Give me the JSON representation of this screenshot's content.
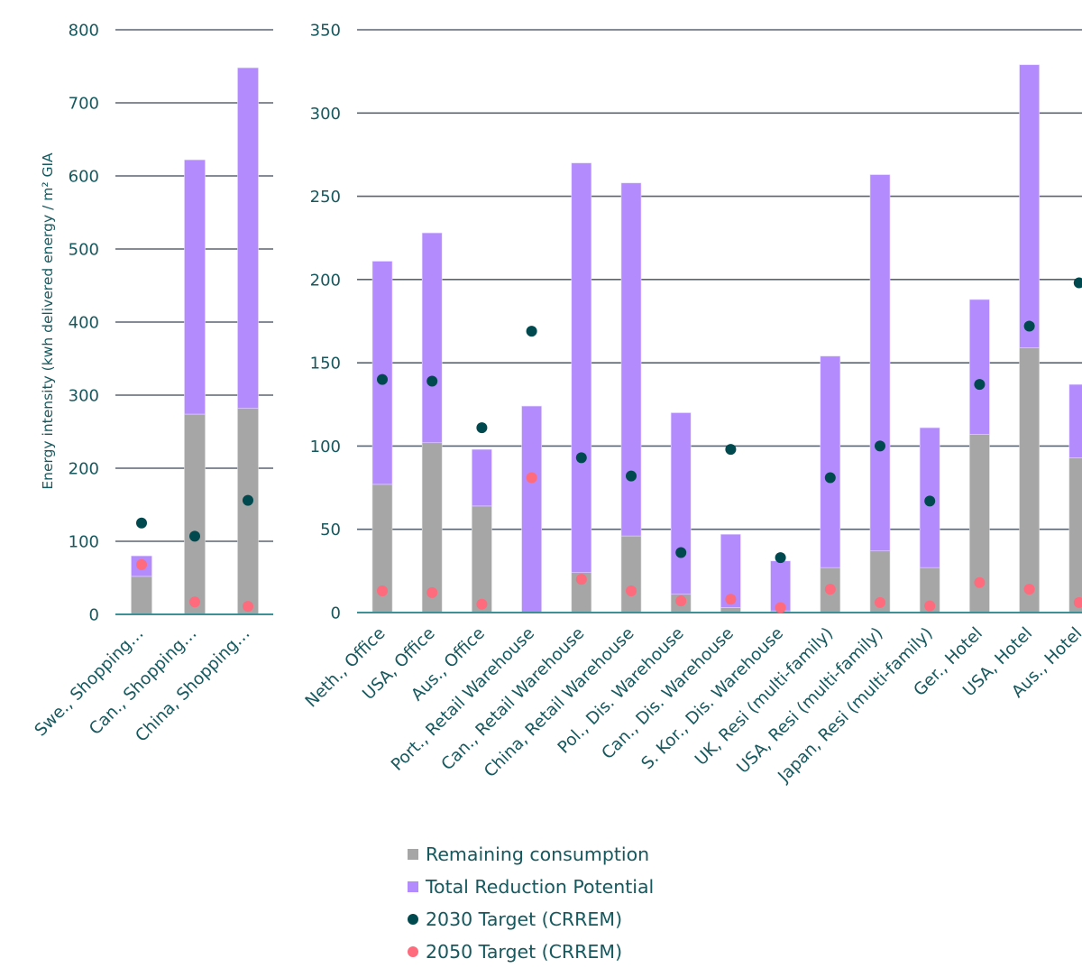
{
  "colors": {
    "remaining": "#a6a6a6",
    "reduction": "#b38bfd",
    "target2030": "#00494f",
    "target2050": "#fd6b7d",
    "text": "#15585e",
    "grid": "#5b6571",
    "baseline": "#3d9096"
  },
  "chart_data": [
    {
      "type": "bar",
      "stacked": true,
      "ylabel": "Energy intensity (kwh delivered energy / m² GIA",
      "ylim": [
        0,
        800
      ],
      "yticks": [
        0,
        100,
        200,
        300,
        400,
        500,
        600,
        700,
        800
      ],
      "ytick_labels": [
        "0",
        "100",
        "200",
        "300",
        "400",
        "500",
        "600",
        "700",
        "800"
      ],
      "grid": true,
      "categories": [
        "Swe., Shopping…",
        "Can., Shopping…",
        "China, Shopping…"
      ],
      "series": [
        {
          "name": "Remaining consumption",
          "kind": "bar",
          "values": [
            52,
            274,
            282
          ]
        },
        {
          "name": "Total Reduction Potential",
          "kind": "bar",
          "values": [
            28,
            348,
            466
          ]
        },
        {
          "name": "2030 Target (CRREM)",
          "kind": "scatter",
          "values": [
            125,
            107,
            156
          ]
        },
        {
          "name": "2050 Target (CRREM)",
          "kind": "scatter",
          "values": [
            68,
            17,
            11
          ]
        }
      ]
    },
    {
      "type": "bar",
      "stacked": true,
      "ylabel": "",
      "ylim": [
        0,
        350
      ],
      "yticks": [
        0,
        50,
        100,
        150,
        200,
        250,
        300,
        350
      ],
      "ytick_labels": [
        "0",
        "50",
        "100",
        "150",
        "200",
        "250",
        "300",
        "350"
      ],
      "grid": true,
      "categories": [
        "Neth., Office",
        "USA, Office",
        "Aus., Office",
        "Port., Retail Warehouse",
        "Can., Retail Warehouse",
        "China, Retail Warehouse",
        "Pol., Dis. Warehouse",
        "Can., Dis. Warehouse",
        "S. Kor., Dis. Warehouse",
        "UK, Resi (multi-family)",
        "USA, Resi (multi-family)",
        "Japan, Resi (multi-family)",
        "Ger., Hotel",
        "USA, Hotel",
        "Aus., Hotel"
      ],
      "series": [
        {
          "name": "Remaining consumption",
          "kind": "bar",
          "values": [
            77,
            102,
            64,
            0,
            24,
            46,
            11,
            3,
            1,
            27,
            37,
            27,
            107,
            159,
            93
          ]
        },
        {
          "name": "Total Reduction Potential",
          "kind": "bar",
          "values": [
            134,
            126,
            34,
            124,
            246,
            212,
            109,
            44,
            30,
            127,
            226,
            84,
            81,
            170,
            44
          ]
        },
        {
          "name": "2030 Target (CRREM)",
          "kind": "scatter",
          "values": [
            140,
            139,
            111,
            169,
            93,
            82,
            36,
            98,
            33,
            81,
            100,
            67,
            137,
            172,
            198
          ]
        },
        {
          "name": "2050 Target (CRREM)",
          "kind": "scatter",
          "values": [
            13,
            12,
            5,
            81,
            20,
            13,
            7,
            8,
            3,
            14,
            6,
            4,
            18,
            14,
            6
          ]
        }
      ]
    }
  ],
  "legend": {
    "position": "bottom-center",
    "items": [
      {
        "label": "Remaining consumption",
        "marker": "square",
        "color": "#a6a6a6"
      },
      {
        "label": "Total Reduction Potential",
        "marker": "square",
        "color": "#b38bfd"
      },
      {
        "label": "2030 Target (CRREM)",
        "marker": "circle",
        "color": "#00494f"
      },
      {
        "label": "2050 Target (CRREM)",
        "marker": "circle",
        "color": "#fd6b7d"
      }
    ]
  }
}
